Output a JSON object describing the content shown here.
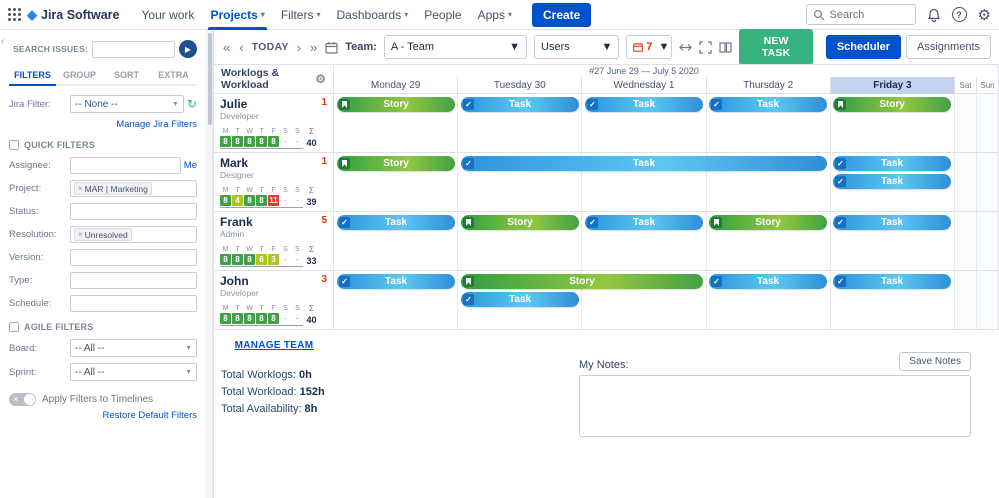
{
  "colors": {
    "accent_blue": "#0052CC",
    "green_button": "#36B37E",
    "story_green": "#3f9c35",
    "task_blue": "#38a7e4",
    "alert_red": "#de350b",
    "friday_highlight": "#c3d3ee"
  },
  "topbar": {
    "product": "Jira Software",
    "nav": [
      "Your work",
      "Projects",
      "Filters",
      "Dashboards",
      "People",
      "Apps"
    ],
    "active_nav": "Projects",
    "create": "Create",
    "search_placeholder": "Search"
  },
  "sidebar": {
    "search_label": "SEARCH ISSUES:",
    "tabs": [
      "FILTERS",
      "GROUP",
      "SORT",
      "EXTRA"
    ],
    "active_tab": "FILTERS",
    "jira_filter": {
      "label": "Jira Filter:",
      "value": "-- None --"
    },
    "manage_jira_filters": "Manage Jira Filters",
    "quick_filters": "QUICK FILTERS",
    "assignee": {
      "label": "Assignee:",
      "me": "Me"
    },
    "project": {
      "label": "Project:",
      "chip": "MAR | Marketing"
    },
    "status": {
      "label": "Status:"
    },
    "resolution": {
      "label": "Resolution:",
      "chip": "Unresolved"
    },
    "version": {
      "label": "Version:"
    },
    "type": {
      "label": "Type:"
    },
    "schedule_field": {
      "label": "Schedule:"
    },
    "agile_filters": "AGILE FILTERS",
    "board_filter": {
      "label": "Board:",
      "value": "-- All --"
    },
    "sprint_filter": {
      "label": "Sprint:",
      "value": "-- All --"
    },
    "apply_filters": "Apply Filters to Timelines",
    "restore": "Restore Default Filters"
  },
  "toolbar": {
    "today": "TODAY",
    "team_label": "Team:",
    "team_value": "A - Team",
    "users_value": "Users",
    "count_value": "7",
    "new_task": "NEW TASK",
    "scheduler": "Scheduler",
    "assignments": "Assignments"
  },
  "board": {
    "panel_title": "Worklogs & Workload",
    "week_label": "#27 June 29 — July 5 2020",
    "days": [
      "Monday 29",
      "Tuesday 30",
      "Wednesday 1",
      "Thursday 2",
      "Friday 3",
      "Sat",
      "Sun"
    ],
    "highlight_day": "Friday 3",
    "mini_days": [
      "M",
      "T",
      "W",
      "T",
      "F",
      "S",
      "S"
    ],
    "sum_symbol": "Σ",
    "members": [
      {
        "name": "Julie",
        "role": "Developer",
        "badge": "1",
        "total": "40",
        "hours": [
          {
            "v": "8",
            "lv": "ok"
          },
          {
            "v": "8",
            "lv": "ok"
          },
          {
            "v": "8",
            "lv": "ok"
          },
          {
            "v": "8",
            "lv": "ok"
          },
          {
            "v": "8",
            "lv": "ok"
          },
          {
            "v": "-",
            "lv": "none"
          },
          {
            "v": "-",
            "lv": "none"
          }
        ],
        "bars": [
          {
            "day": 0,
            "span": 1,
            "line": 0,
            "type": "story",
            "label": "Story"
          },
          {
            "day": 1,
            "span": 1,
            "line": 0,
            "type": "task",
            "label": "Task"
          },
          {
            "day": 2,
            "span": 1,
            "line": 0,
            "type": "task",
            "label": "Task"
          },
          {
            "day": 3,
            "span": 1,
            "line": 0,
            "type": "task",
            "label": "Task"
          },
          {
            "day": 4,
            "span": 1,
            "line": 0,
            "type": "story",
            "label": "Story"
          }
        ]
      },
      {
        "name": "Mark",
        "role": "Designer",
        "badge": "1",
        "total": "39",
        "hours": [
          {
            "v": "8",
            "lv": "ok"
          },
          {
            "v": "4",
            "lv": "mid"
          },
          {
            "v": "8",
            "lv": "ok"
          },
          {
            "v": "8",
            "lv": "ok"
          },
          {
            "v": "11",
            "lv": "over"
          },
          {
            "v": "-",
            "lv": "none"
          },
          {
            "v": "-",
            "lv": "none"
          }
        ],
        "bars": [
          {
            "day": 0,
            "span": 1,
            "line": 0,
            "type": "story",
            "label": "Story"
          },
          {
            "day": 1,
            "span": 3,
            "line": 0,
            "type": "task",
            "label": "Task"
          },
          {
            "day": 4,
            "span": 1,
            "line": 0,
            "type": "task",
            "label": "Task"
          },
          {
            "day": 4,
            "span": 1,
            "line": 1,
            "type": "task",
            "label": "Task"
          }
        ]
      },
      {
        "name": "Frank",
        "role": "Admin",
        "badge": "5",
        "total": "33",
        "hours": [
          {
            "v": "8",
            "lv": "ok"
          },
          {
            "v": "8",
            "lv": "ok"
          },
          {
            "v": "8",
            "lv": "ok"
          },
          {
            "v": "6",
            "lv": "mid"
          },
          {
            "v": "3",
            "lv": "mid"
          },
          {
            "v": "-",
            "lv": "none"
          },
          {
            "v": "-",
            "lv": "none"
          }
        ],
        "bars": [
          {
            "day": 0,
            "span": 1,
            "line": 0,
            "type": "task",
            "label": "Task"
          },
          {
            "day": 1,
            "span": 1,
            "line": 0,
            "type": "story",
            "label": "Story"
          },
          {
            "day": 2,
            "span": 1,
            "line": 0,
            "type": "task",
            "label": "Task"
          },
          {
            "day": 3,
            "span": 1,
            "line": 0,
            "type": "story",
            "label": "Story"
          },
          {
            "day": 4,
            "span": 1,
            "line": 0,
            "type": "task",
            "label": "Task"
          }
        ]
      },
      {
        "name": "John",
        "role": "Developer",
        "badge": "3",
        "total": "40",
        "hours": [
          {
            "v": "8",
            "lv": "ok"
          },
          {
            "v": "8",
            "lv": "ok"
          },
          {
            "v": "8",
            "lv": "ok"
          },
          {
            "v": "8",
            "lv": "ok"
          },
          {
            "v": "8",
            "lv": "ok"
          },
          {
            "v": "-",
            "lv": "none"
          },
          {
            "v": "-",
            "lv": "none"
          }
        ],
        "bars": [
          {
            "day": 0,
            "span": 1,
            "line": 0,
            "type": "task",
            "label": "Task"
          },
          {
            "day": 1,
            "span": 2,
            "line": 0,
            "type": "story",
            "label": "Story"
          },
          {
            "day": 1,
            "span": 1,
            "line": 1,
            "type": "task",
            "label": "Task"
          },
          {
            "day": 3,
            "span": 1,
            "line": 0,
            "type": "task",
            "label": "Task"
          },
          {
            "day": 4,
            "span": 1,
            "line": 0,
            "type": "task",
            "label": "Task"
          }
        ]
      }
    ]
  },
  "footer": {
    "manage_team": "MANAGE TEAM",
    "totals": [
      {
        "label": "Total Worklogs:",
        "value": "0h"
      },
      {
        "label": "Total Workload:",
        "value": "152h"
      },
      {
        "label": "Total Availability:",
        "value": "8h"
      }
    ],
    "notes_label": "My Notes:",
    "save_notes": "Save Notes"
  }
}
